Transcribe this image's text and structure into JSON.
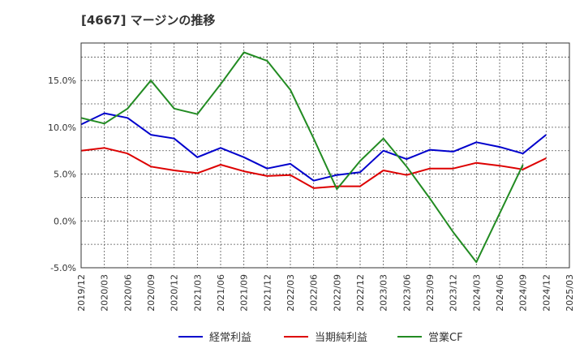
{
  "chart_data": {
    "type": "line",
    "title": "[4667]  マージンの推移",
    "xlabel": "",
    "ylabel": "",
    "ylim": [
      -5,
      19
    ],
    "yticks": [
      "-5.0%",
      "0.0%",
      "5.0%",
      "10.0%",
      "15.0%"
    ],
    "ytick_values": [
      -5,
      0,
      5,
      10,
      15
    ],
    "x": [
      "2019/12",
      "2020/03",
      "2020/06",
      "2020/09",
      "2020/12",
      "2021/03",
      "2021/06",
      "2021/09",
      "2021/12",
      "2022/03",
      "2022/06",
      "2022/09",
      "2022/12",
      "2023/03",
      "2023/06",
      "2023/09",
      "2023/12",
      "2024/03",
      "2024/06",
      "2024/09",
      "2024/12",
      "2025/03"
    ],
    "grid": true,
    "legend_position": "bottom",
    "series": [
      {
        "name": "経常利益",
        "color": "#0000cc",
        "values": [
          10.3,
          11.5,
          11.0,
          9.2,
          8.8,
          6.8,
          7.8,
          6.8,
          5.6,
          6.1,
          4.3,
          4.9,
          5.2,
          7.5,
          6.6,
          7.6,
          7.4,
          8.4,
          7.9,
          7.2,
          9.2,
          null
        ]
      },
      {
        "name": "当期純利益",
        "color": "#dd0000",
        "values": [
          7.5,
          7.8,
          7.2,
          5.8,
          5.4,
          5.1,
          6.0,
          5.3,
          4.8,
          4.9,
          3.5,
          3.7,
          3.7,
          5.4,
          4.9,
          5.6,
          5.6,
          6.2,
          5.9,
          5.5,
          6.7,
          null
        ]
      },
      {
        "name": "営業CF",
        "color": "#228b22",
        "values": [
          11.0,
          10.4,
          12.0,
          15.0,
          12.0,
          11.4,
          14.6,
          18.0,
          17.1,
          14.0,
          8.8,
          3.4,
          6.4,
          8.8,
          5.8,
          2.4,
          -1.2,
          -4.4,
          0.8,
          6.0,
          null,
          null
        ]
      }
    ]
  }
}
